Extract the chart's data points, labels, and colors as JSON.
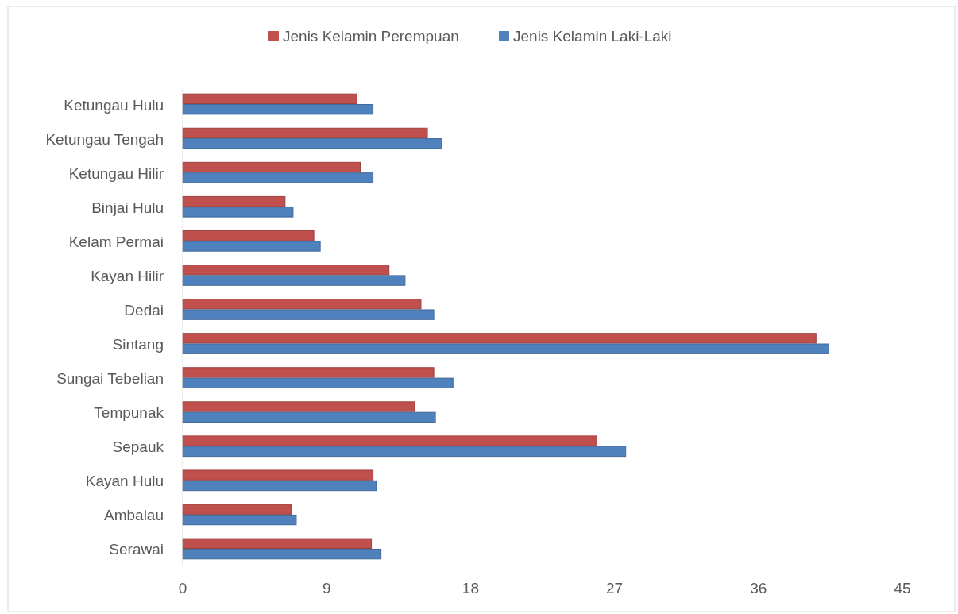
{
  "chart_data": {
    "type": "bar",
    "orientation": "horizontal",
    "categories": [
      "Ketungau Hulu",
      "Ketungau Tengah",
      "Ketungau Hilir",
      "Binjai Hulu",
      "Kelam Permai",
      "Kayan Hilir",
      "Dedai",
      "Sintang",
      "Sungai Tebelian",
      "Tempunak",
      "Sepauk",
      "Kayan Hulu",
      "Ambalau",
      "Serawai"
    ],
    "series": [
      {
        "name": "Jenis Kelamin Perempuan",
        "color": "#c0504d",
        "values": [
          10.9,
          15.3,
          11.1,
          6.4,
          8.2,
          12.9,
          14.9,
          39.6,
          15.7,
          14.5,
          25.9,
          11.9,
          6.8,
          11.8
        ]
      },
      {
        "name": "Jenis Kelamin Laki-Laki",
        "color": "#4f81bd",
        "values": [
          11.9,
          16.2,
          11.9,
          6.9,
          8.6,
          13.9,
          15.7,
          40.4,
          16.9,
          15.8,
          27.7,
          12.1,
          7.1,
          12.4
        ]
      }
    ],
    "xlim": [
      0,
      45
    ],
    "xticks": [
      0,
      9,
      18,
      27,
      36,
      45
    ],
    "legend": "top",
    "grid": false
  }
}
